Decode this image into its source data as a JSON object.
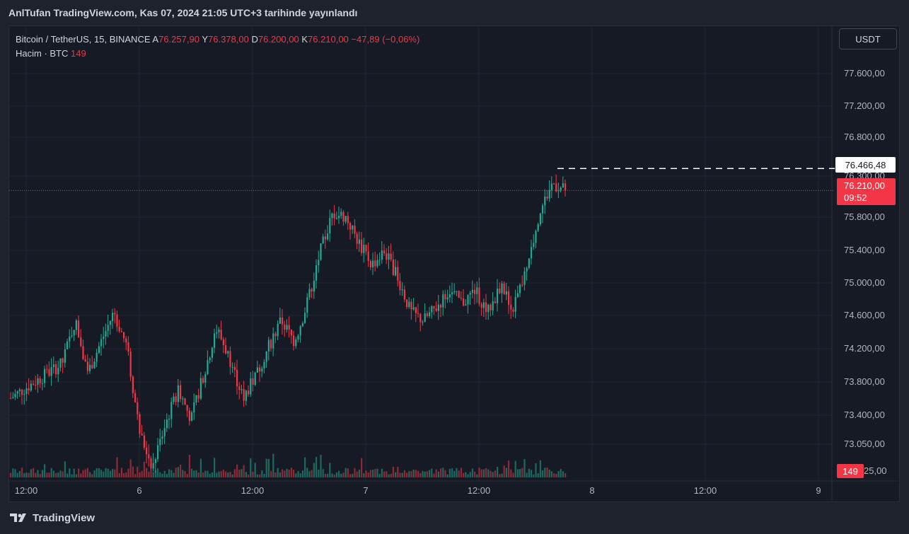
{
  "header": {
    "published_text": "AnlTufan TradingView.com, Kas 07, 2024 21:05 UTC+3 tarihinde yayınlandı"
  },
  "legend": {
    "symbol": "Bitcoin / TetherUS, 15, BINANCE",
    "open_label": "A",
    "open_value": "76.257,90",
    "high_label": "Y",
    "high_value": "76.378,00",
    "low_label": "D",
    "low_value": "76.200,00",
    "close_label": "K",
    "close_value": "76.210,00",
    "change": "−47,89 (−0,06%)",
    "volume_label": "Hacim · BTC",
    "volume_value": "149"
  },
  "currency_button": "USDT",
  "price_axis": [
    "77.600,00",
    "77.200,00",
    "76.800,00",
    "76.300,00",
    "75.800,00",
    "75.400,00",
    "75.000,00",
    "74.600,00",
    "74.200,00",
    "73.800,00",
    "73.400,00",
    "73.050,00"
  ],
  "high_marker": "76.466,48",
  "last_price": {
    "price": "76.210,00",
    "countdown": "09:52"
  },
  "volume_marker": "149",
  "volume_axis_tail": "25,00",
  "time_axis": [
    "12:00",
    "6",
    "12:00",
    "7",
    "12:00",
    "8",
    "12:00",
    "9"
  ],
  "footer": {
    "brand": "TradingView"
  },
  "colors": {
    "up": "#22ab94",
    "down": "#f23645",
    "background": "#161a25",
    "grid": "#232733"
  },
  "chart_data": {
    "type": "candlestick",
    "title": "Bitcoin / TetherUS, 15, BINANCE",
    "interval": "15",
    "ylim": [
      72950,
      77800
    ],
    "x_ticks": [
      "12:00",
      "6",
      "12:00",
      "7",
      "12:00",
      "8",
      "12:00",
      "9"
    ],
    "close_path": [
      [
        0,
        73800
      ],
      [
        4,
        74200
      ],
      [
        5,
        74700
      ],
      [
        6,
        74100
      ],
      [
        8,
        74800
      ],
      [
        9,
        74400
      ],
      [
        10,
        73400
      ],
      [
        11,
        73000
      ],
      [
        12,
        73500
      ],
      [
        13,
        73900
      ],
      [
        14,
        73550
      ],
      [
        15,
        74100
      ],
      [
        16,
        74600
      ],
      [
        17,
        74250
      ],
      [
        18,
        73800
      ],
      [
        19,
        74050
      ],
      [
        20,
        74400
      ],
      [
        21,
        74700
      ],
      [
        22,
        74450
      ],
      [
        23,
        74900
      ],
      [
        24,
        75500
      ],
      [
        25,
        75950
      ],
      [
        26,
        75900
      ],
      [
        27,
        75600
      ],
      [
        28,
        75350
      ],
      [
        29,
        75500
      ],
      [
        30,
        75200
      ],
      [
        31,
        74800
      ],
      [
        32,
        74700
      ],
      [
        33,
        74850
      ],
      [
        34,
        75050
      ],
      [
        35,
        74900
      ],
      [
        36,
        75050
      ],
      [
        37,
        74800
      ],
      [
        38,
        75100
      ],
      [
        39,
        74850
      ],
      [
        40,
        75300
      ],
      [
        41,
        75950
      ],
      [
        42,
        76300
      ],
      [
        43,
        76210
      ]
    ],
    "last_close": 76210,
    "high_marker": 76466.48,
    "last_volume": 149
  }
}
